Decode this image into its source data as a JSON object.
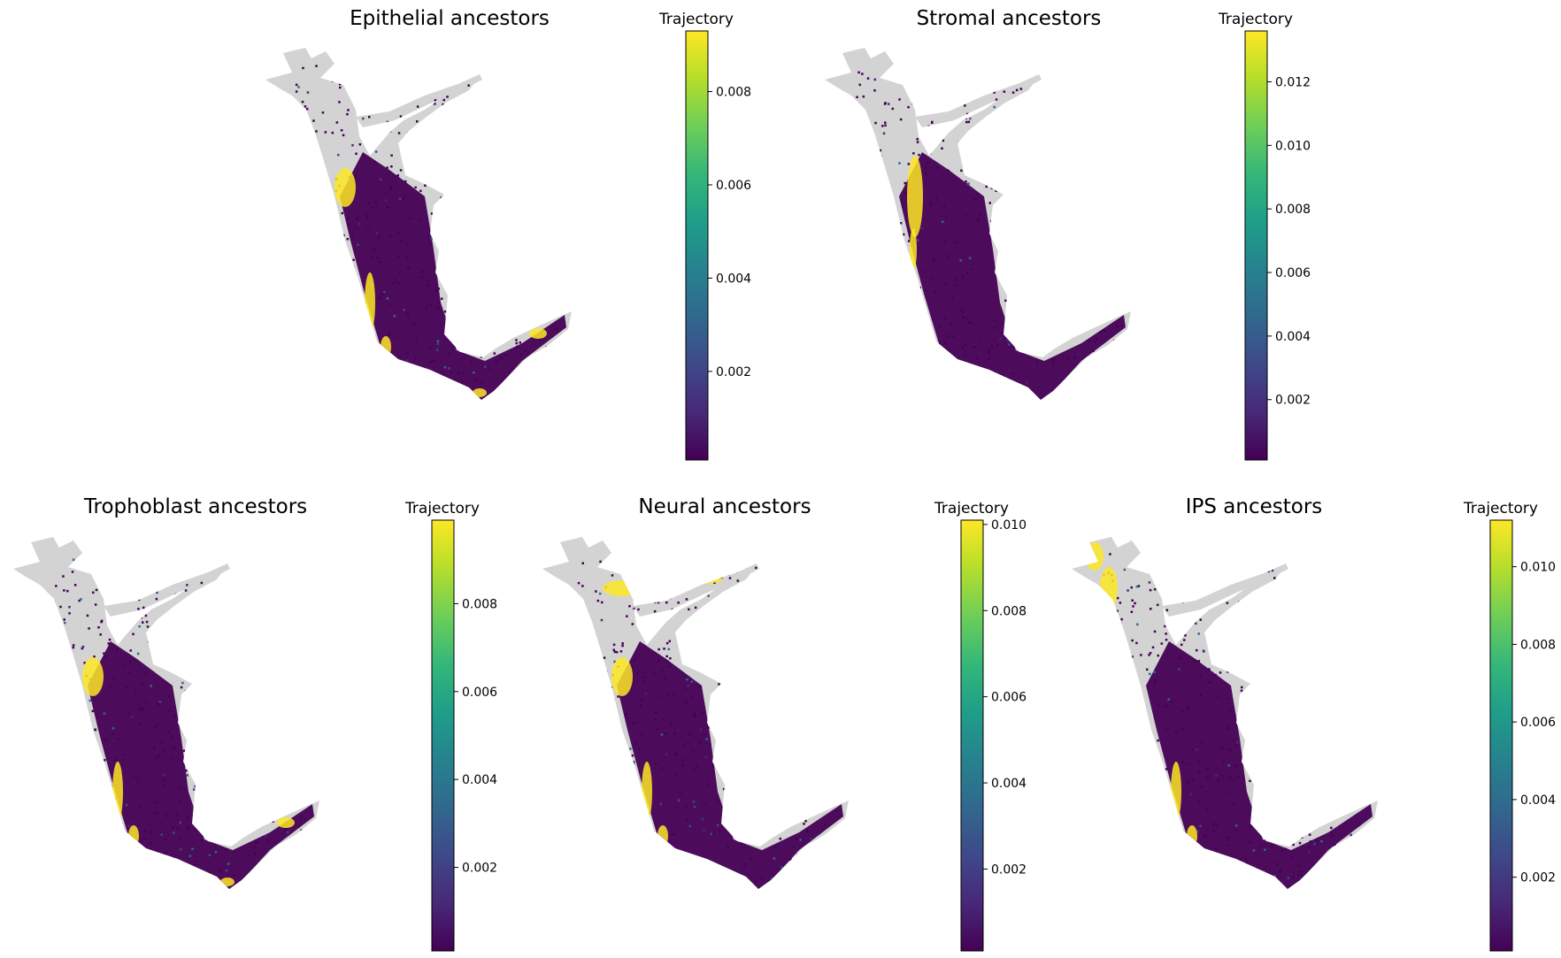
{
  "colormap": [
    "#440154",
    "#482878",
    "#3e4989",
    "#31688e",
    "#26828e",
    "#1f9e89",
    "#35b779",
    "#6ece58",
    "#b5de2b",
    "#fde725"
  ],
  "background_color": "#d3d3d3",
  "chart_data": [
    {
      "type": "scatter",
      "title": "Epithelial ancestors",
      "colorbar_label": "Trajectory",
      "colorbar_ticks": [
        "0.002",
        "0.004",
        "0.006",
        "0.008"
      ],
      "colorbar_tick_values": [
        0.002,
        0.004,
        0.006,
        0.008
      ],
      "colorbar_range": [
        0.0001,
        0.0093
      ],
      "hotspots": [
        "upper-left branch junction",
        "left edge",
        "bottom tip"
      ]
    },
    {
      "type": "scatter",
      "title": "Stromal ancestors",
      "colorbar_label": "Trajectory",
      "colorbar_ticks": [
        "0.002",
        "0.004",
        "0.006",
        "0.008",
        "0.010",
        "0.012"
      ],
      "colorbar_tick_values": [
        0.002,
        0.004,
        0.006,
        0.008,
        0.01,
        0.012
      ],
      "colorbar_range": [
        0.0001,
        0.0136
      ],
      "hotspots": [
        "central branch junction"
      ]
    },
    {
      "type": "scatter",
      "title": "Trophoblast ancestors",
      "colorbar_label": "Trajectory",
      "colorbar_ticks": [
        "0.002",
        "0.004",
        "0.006",
        "0.008"
      ],
      "colorbar_tick_values": [
        0.002,
        0.004,
        0.006,
        0.008
      ],
      "colorbar_range": [
        0.0001,
        0.0099
      ],
      "hotspots": [
        "upper-left branch junction",
        "left edge",
        "bottom tip"
      ]
    },
    {
      "type": "scatter",
      "title": "Neural ancestors",
      "colorbar_label": "Trajectory",
      "colorbar_ticks": [
        "0.002",
        "0.004",
        "0.006",
        "0.008",
        "0.010"
      ],
      "colorbar_tick_values": [
        0.002,
        0.004,
        0.006,
        0.008,
        0.01
      ],
      "colorbar_range": [
        0.0001,
        0.0101
      ],
      "hotspots": [
        "upper-right arm",
        "upper-left branch junction",
        "left edge"
      ]
    },
    {
      "type": "scatter",
      "title": "IPS ancestors",
      "colorbar_label": "Trajectory",
      "colorbar_ticks": [
        "0.002",
        "0.004",
        "0.006",
        "0.008",
        "0.010"
      ],
      "colorbar_tick_values": [
        0.002,
        0.004,
        0.006,
        0.008,
        0.01
      ],
      "colorbar_range": [
        0.0001,
        0.0112
      ],
      "hotspots": [
        "top-left lobe",
        "left edge"
      ]
    }
  ]
}
